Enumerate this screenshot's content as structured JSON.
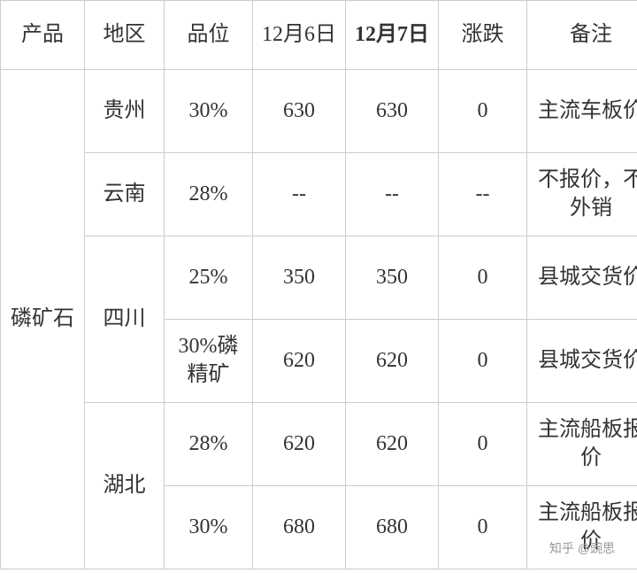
{
  "table": {
    "headers": {
      "product": "产品",
      "region": "地区",
      "grade": "品位",
      "date1": "12月6日",
      "date2": "12月7日",
      "change": "涨跌",
      "note": "备注"
    },
    "product_name": "磷矿石",
    "rows": [
      {
        "region": "贵州",
        "region_rowspan": 1,
        "grade": "30%",
        "date1": "630",
        "date2": "630",
        "change": "0",
        "note": "主流车板价"
      },
      {
        "region": "云南",
        "region_rowspan": 1,
        "grade": "28%",
        "date1": "--",
        "date2": "--",
        "change": "--",
        "note": "不报价，不外销"
      },
      {
        "region": "四川",
        "region_rowspan": 2,
        "grade": "25%",
        "date1": "350",
        "date2": "350",
        "change": "0",
        "note": "县城交货价"
      },
      {
        "region": null,
        "grade": "30%磷精矿",
        "date1": "620",
        "date2": "620",
        "change": "0",
        "note": "县城交货价"
      },
      {
        "region": "湖北",
        "region_rowspan": 2,
        "grade": "28%",
        "date1": "620",
        "date2": "620",
        "change": "0",
        "note": "主流船板报价"
      },
      {
        "region": null,
        "grade": "30%",
        "date1": "680",
        "date2": "680",
        "change": "0",
        "note": "主流船板报价"
      }
    ]
  },
  "watermark": "知乎 @豌思"
}
